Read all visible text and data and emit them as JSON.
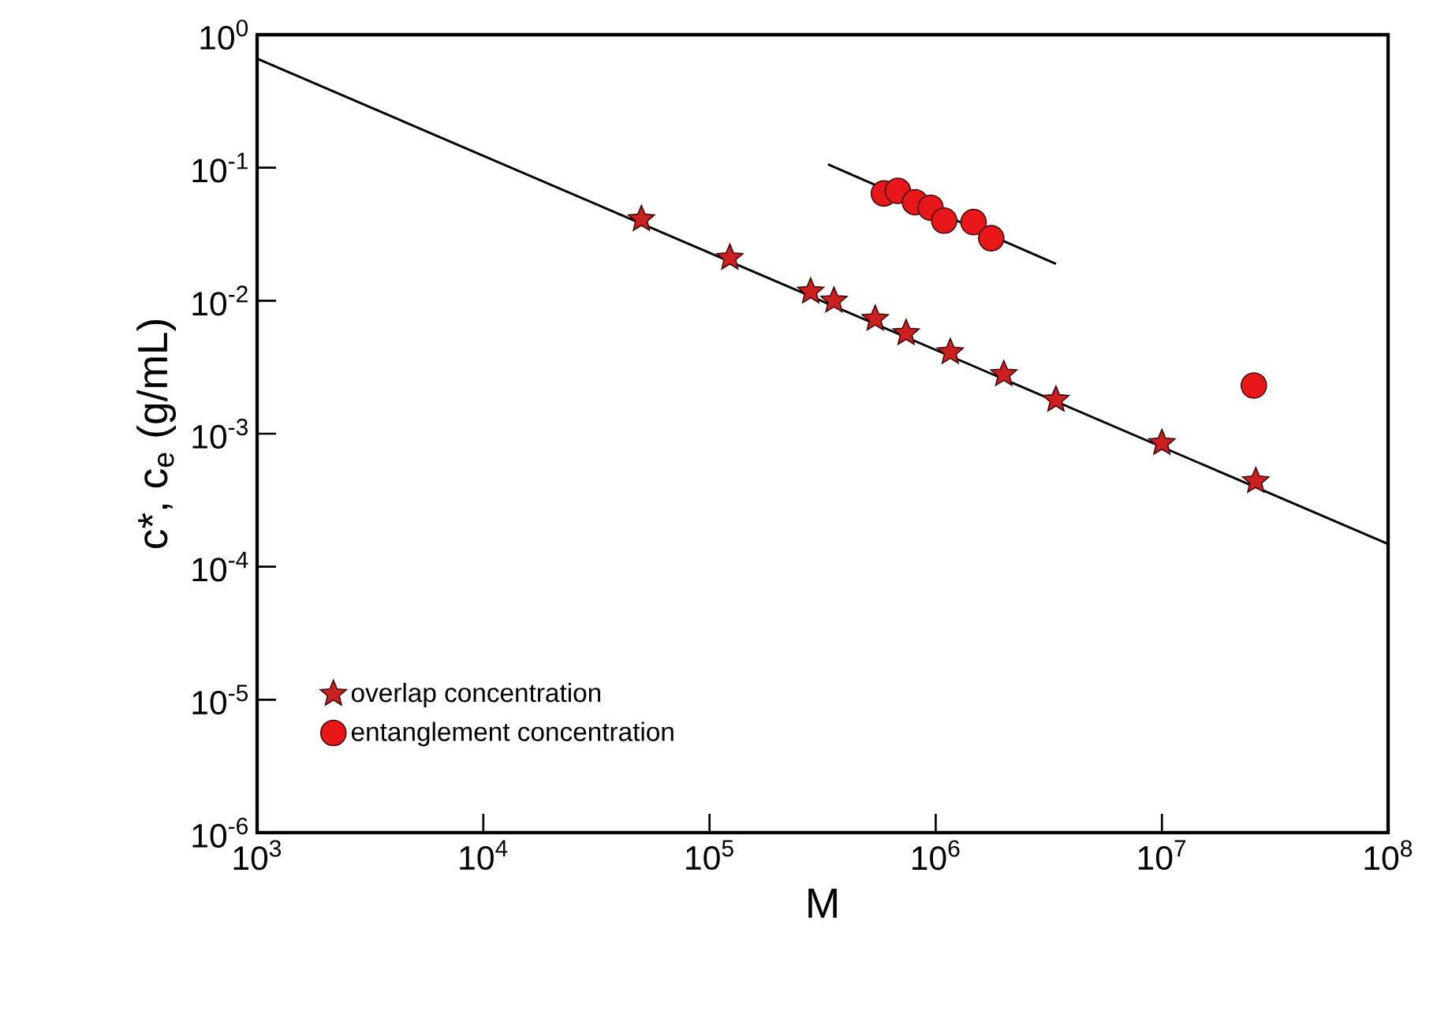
{
  "chart_data": {
    "type": "scatter",
    "xlabel": "M",
    "ylabel": "c*, c$_{e}$ (g/mL)",
    "log": "xy",
    "grid": false,
    "legend": "bottom left",
    "xlim": [
      1000,
      100000000
    ],
    "ylim": [
      1e-06,
      1
    ],
    "xticks": [
      {
        "value": 1000,
        "label": "10$^{3}$"
      },
      {
        "value": 10000,
        "label": "10$^{4}$"
      },
      {
        "value": 100000,
        "label": "10$^{5}$"
      },
      {
        "value": 1000000,
        "label": "10$^{6}$"
      },
      {
        "value": 10000000,
        "label": "10$^{7}$"
      },
      {
        "value": 100000000,
        "label": "10$^{8}$"
      }
    ],
    "yticks": [
      {
        "value": 1e-06,
        "label": "10$^{-6}$"
      },
      {
        "value": 1e-05,
        "label": "10$^{-5}$"
      },
      {
        "value": 0.0001,
        "label": "10$^{-4}$"
      },
      {
        "value": 0.001,
        "label": "10$^{-3}$"
      },
      {
        "value": 0.01,
        "label": "10$^{-2}$"
      },
      {
        "value": 0.1,
        "label": "10$^{-1}$"
      },
      {
        "value": 1,
        "label": "10$^{0}$"
      }
    ],
    "series": [
      {
        "name": "overlap concentration",
        "color": "#cc1f1f",
        "marker": "star",
        "x": [
          50000,
          123000,
          280000,
          355000,
          540000,
          740000,
          1160000,
          2000000,
          3400000,
          10000000,
          26000000
        ],
        "values": [
          0.041,
          0.021,
          0.0117,
          0.01,
          0.0073,
          0.0057,
          0.0041,
          0.0028,
          0.0018,
          0.00085,
          0.00044
        ]
      },
      {
        "name": "entanglement concentration",
        "color": "#e8171a",
        "marker": "circle",
        "x": [
          590000,
          680000,
          810000,
          950000,
          1090000,
          1470000,
          1760000,
          25500000
        ],
        "values": [
          0.064,
          0.067,
          0.055,
          0.05,
          0.04,
          0.039,
          0.0295,
          0.0023
        ]
      },
      {
        "type": "line",
        "color": "#000000",
        "marker": "none",
        "x": [
          1000,
          100000000
        ],
        "values": [
          0.66,
          0.000148
        ]
      },
      {
        "type": "line",
        "color": "#000000",
        "marker": "none",
        "x": [
          334000,
          3400000
        ],
        "values": [
          0.106,
          0.0189
        ]
      }
    ]
  }
}
